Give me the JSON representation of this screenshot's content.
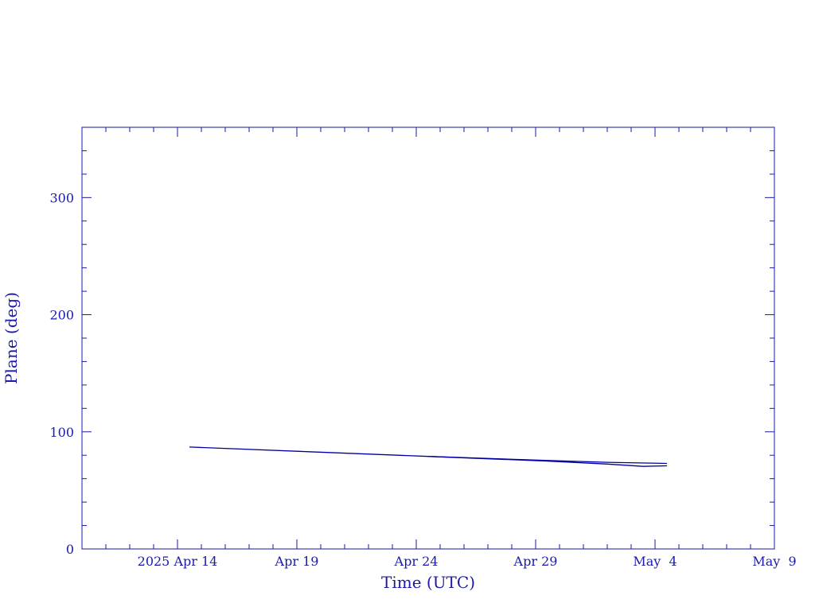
{
  "chart_data": {
    "type": "line",
    "title": "",
    "xlabel": "Time (UTC)",
    "ylabel": "Plane (deg)",
    "ylim": [
      0,
      360
    ],
    "xlim": [
      "2025-04-10",
      "2025-05-09"
    ],
    "x_ticks": [
      {
        "date": "2025-04-14",
        "label": "2025 Apr 14"
      },
      {
        "date": "2025-04-19",
        "label": "Apr 19"
      },
      {
        "date": "2025-04-24",
        "label": "Apr 24"
      },
      {
        "date": "2025-04-29",
        "label": "Apr 29"
      },
      {
        "date": "2025-05-04",
        "label": "May  4"
      },
      {
        "date": "2025-05-09",
        "label": "May  9"
      }
    ],
    "y_ticks": [
      0,
      100,
      200,
      300
    ],
    "grid": false,
    "color": "#0000a0",
    "series": [
      {
        "x": [
          "2025-04-14T12:00",
          "2025-04-19T12:00",
          "2025-04-24T12:00",
          "2025-04-29T12:00",
          "2025-05-02T00:00",
          "2025-05-04T12:00"
        ],
        "y": [
          87,
          83,
          79,
          75.5,
          74,
          73
        ]
      },
      {
        "x": [
          "2025-04-24T12:00",
          "2025-04-29T12:00",
          "2025-05-02T00:00",
          "2025-05-03T12:00",
          "2025-05-04T12:00"
        ],
        "y": [
          79,
          75,
          72.5,
          70.5,
          71
        ]
      }
    ]
  }
}
